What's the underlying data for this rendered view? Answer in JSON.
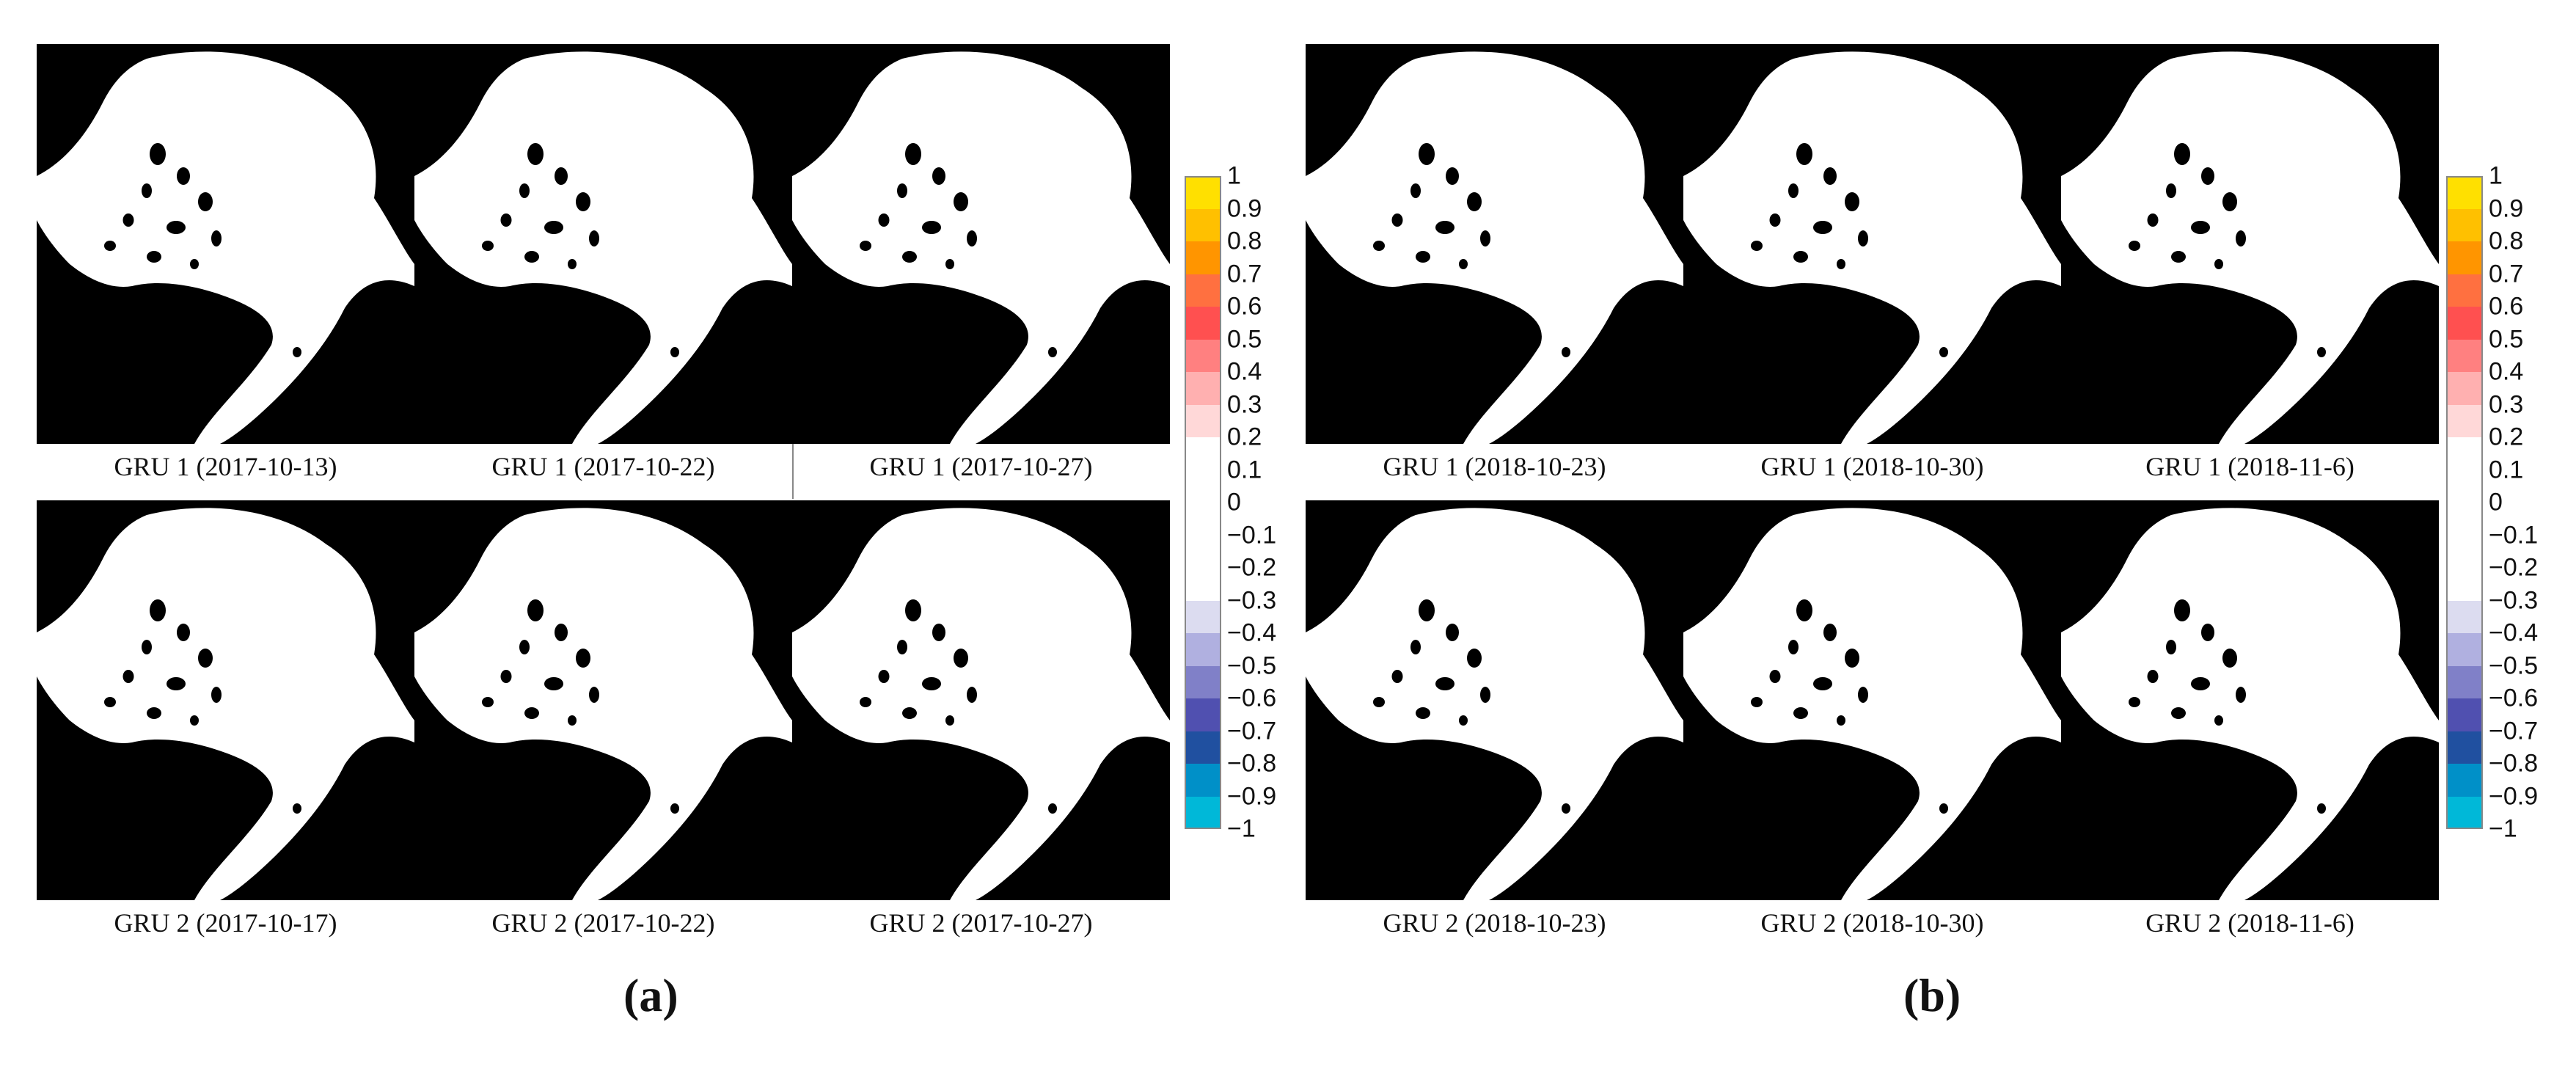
{
  "panels": [
    {
      "label": "(a)",
      "captions": [
        "GRU 1 (2017-10-13)",
        "GRU 1 (2017-10-22)",
        "GRU 1 (2017-10-27)",
        "GRU 2 (2017-10-17)",
        "GRU 2 (2017-10-22)",
        "GRU 2 (2017-10-27)"
      ]
    },
    {
      "label": "(b)",
      "captions": [
        "GRU 1 (2018-10-23)",
        "GRU 1 (2018-10-30)",
        "GRU 1 (2018-11-6)",
        "GRU 2 (2018-10-23)",
        "GRU 2 (2018-10-30)",
        "GRU 2 (2018-11-6)"
      ]
    }
  ],
  "colorbar": {
    "ticks": [
      "1",
      "0.9",
      "0.8",
      "0.7",
      "0.6",
      "0.5",
      "0.4",
      "0.3",
      "0.2",
      "0.1",
      "0",
      "−0.1",
      "−0.2",
      "−0.3",
      "−0.4",
      "−0.5",
      "−0.6",
      "−0.7",
      "−0.8",
      "−0.9",
      "−1"
    ],
    "colors": [
      "#ffe000",
      "#ffc000",
      "#ff9500",
      "#ff7040",
      "#ff5050",
      "#ff8080",
      "#ffb0b0",
      "#ffd8d8",
      "#ffffff",
      "#ffffff",
      "#ffffff",
      "#ffffff",
      "#ffffff",
      "#dcdcf0",
      "#b0b0e0",
      "#8080c8",
      "#5050b0",
      "#2050a0",
      "#0090c8",
      "#00b8d8"
    ]
  }
}
